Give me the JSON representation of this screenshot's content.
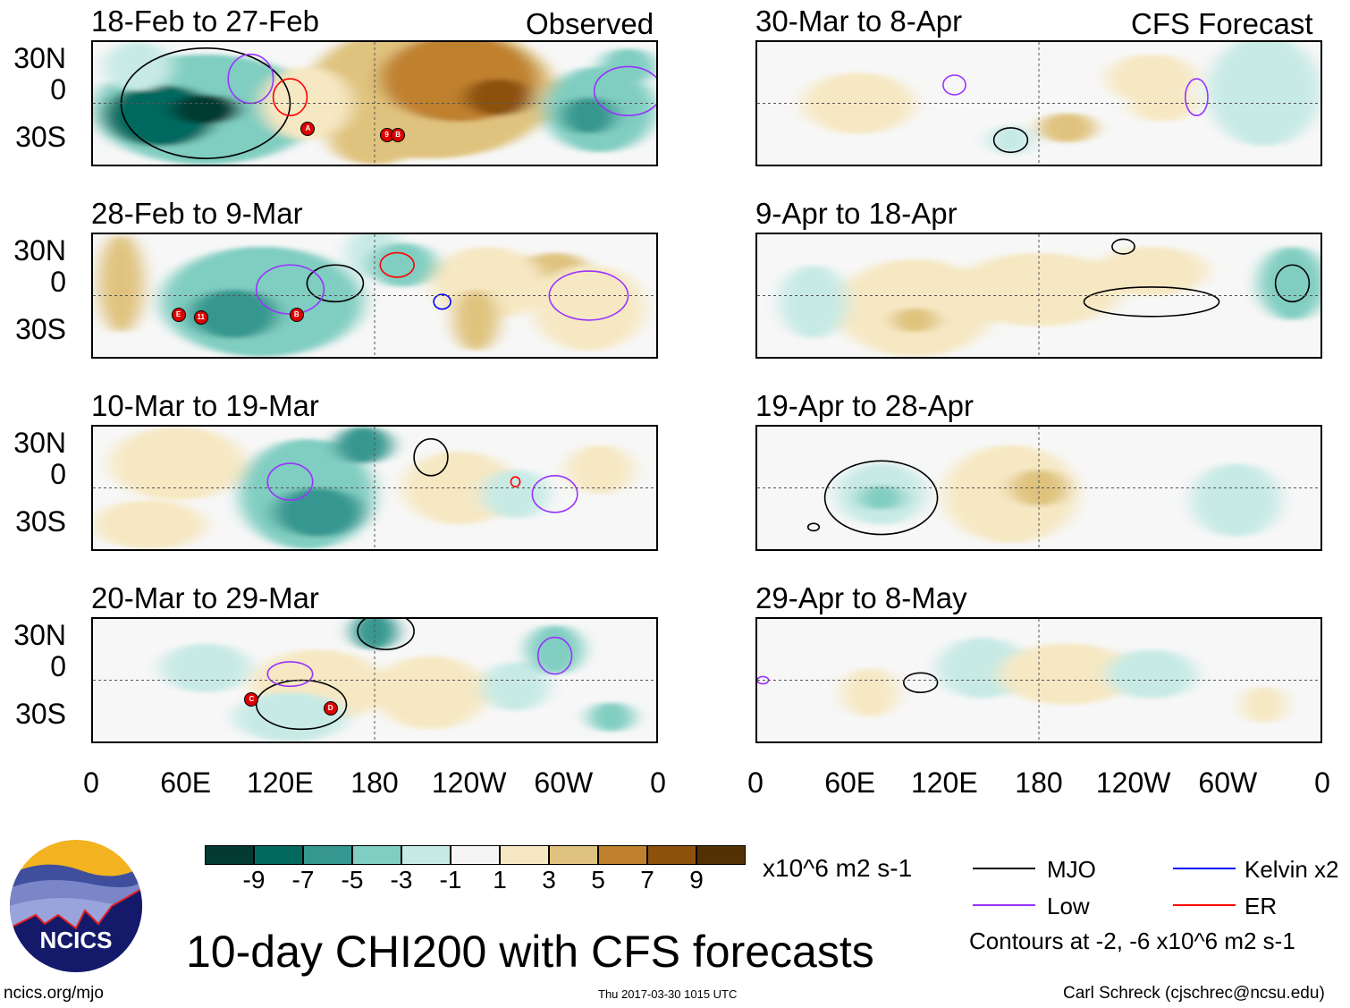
{
  "observed_label": "Observed",
  "forecast_label": "CFS Forecast",
  "panels": [
    {
      "title": "18-Feb to 27-Feb",
      "storms": [
        "A",
        "9",
        "B"
      ]
    },
    {
      "title": "28-Feb to 9-Mar",
      "storms": [
        "E",
        "11",
        "B"
      ]
    },
    {
      "title": "10-Mar to 19-Mar",
      "storms": []
    },
    {
      "title": "20-Mar to 29-Mar",
      "storms": [
        "C",
        "D"
      ]
    },
    {
      "title": "30-Mar to 8-Apr",
      "storms": []
    },
    {
      "title": "9-Apr to 18-Apr",
      "storms": []
    },
    {
      "title": "19-Apr to 28-Apr",
      "storms": []
    },
    {
      "title": "29-Apr to 8-May",
      "storms": []
    }
  ],
  "lat_labels": [
    "30N",
    "0",
    "30S"
  ],
  "lon_labels": [
    "0",
    "60E",
    "120E",
    "180",
    "120W",
    "60W",
    "0"
  ],
  "colorbar": {
    "colors": [
      "#033a33",
      "#03695f",
      "#35978f",
      "#80cdc1",
      "#c7eae5",
      "#f5f5f5",
      "#f6e8c3",
      "#dfc27d",
      "#bf812d",
      "#8c510a",
      "#543005"
    ],
    "labels": [
      "-9",
      "-7",
      "-5",
      "-3",
      "-1",
      "1",
      "3",
      "5",
      "7",
      "9"
    ],
    "units": "x10^6 m2 s-1"
  },
  "legend": {
    "mjo": "MJO",
    "mjo_color": "#000000",
    "low": "Low",
    "low_color": "#9933ff",
    "kelvin": "Kelvin x2",
    "kelvin_color": "#0000ff",
    "er": "ER",
    "er_color": "#ff0000",
    "contours_note": "Contours at -2, -6 x10^6 m2 s-1"
  },
  "title": "10-day CHI200 with CFS forecasts",
  "logo_text": "NCICS",
  "url": "ncics.org/mjo",
  "timestamp": "Thu 2017-03-30 1015 UTC",
  "credit": "Carl Schreck (cjschrec@ncsu.edu)"
}
